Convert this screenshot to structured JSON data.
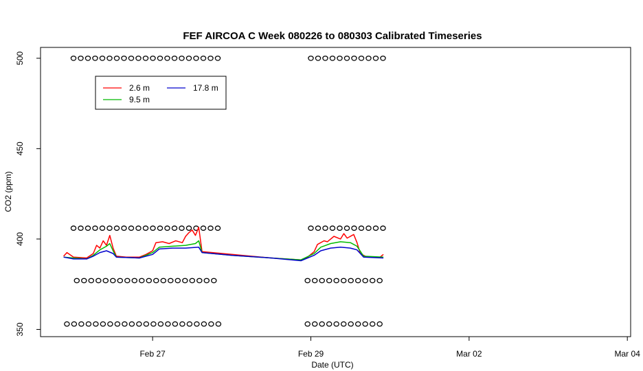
{
  "chart_data": {
    "type": "line",
    "title": "FEF AIRCOA C  Week 080226 to 080303  Calibrated Timeseries",
    "xlabel": "Date (UTC)",
    "ylabel": "CO2 (ppm)",
    "xlim": [
      "2008-02-25T14:00",
      "2008-03-04T01:00"
    ],
    "ylim": [
      346,
      506
    ],
    "x_ticks": [
      {
        "date": "2008-02-27T00:00",
        "label": "Feb 27"
      },
      {
        "date": "2008-02-29T00:00",
        "label": "Feb 29"
      },
      {
        "date": "2008-03-02T00:00",
        "label": "Mar 02"
      },
      {
        "date": "2008-03-04T00:00",
        "label": "Mar 04"
      }
    ],
    "y_ticks": [
      350,
      400,
      450,
      500
    ],
    "grid": false,
    "legend_placement": "top-left",
    "legend": [
      {
        "label": "2.6 m",
        "color": "#ff0000"
      },
      {
        "label": "9.5 m",
        "color": "#00bb00"
      },
      {
        "label": "17.8 m",
        "color": "#0000cc"
      }
    ],
    "series": [
      {
        "name": "2.6 m",
        "color": "#ff0000",
        "points": [
          [
            "2008-02-25T21:00",
            390.5
          ],
          [
            "2008-02-25T22:00",
            392.5
          ],
          [
            "2008-02-26T00:00",
            390.0
          ],
          [
            "2008-02-26T04:00",
            389.5
          ],
          [
            "2008-02-26T06:00",
            392.0
          ],
          [
            "2008-02-26T07:00",
            396.5
          ],
          [
            "2008-02-26T08:00",
            395.0
          ],
          [
            "2008-02-26T09:00",
            399.0
          ],
          [
            "2008-02-26T10:00",
            396.5
          ],
          [
            "2008-02-26T11:00",
            402.0
          ],
          [
            "2008-02-26T12:00",
            395.0
          ],
          [
            "2008-02-26T13:00",
            390.5
          ],
          [
            "2008-02-26T16:00",
            390.0
          ],
          [
            "2008-02-26T20:00",
            390.0
          ],
          [
            "2008-02-26T22:00",
            391.5
          ],
          [
            "2008-02-27T00:00",
            393.5
          ],
          [
            "2008-02-27T01:00",
            398.0
          ],
          [
            "2008-02-27T03:00",
            398.5
          ],
          [
            "2008-02-27T05:00",
            397.5
          ],
          [
            "2008-02-27T07:00",
            399.0
          ],
          [
            "2008-02-27T09:00",
            398.0
          ],
          [
            "2008-02-27T10:00",
            401.5
          ],
          [
            "2008-02-27T11:00",
            403.5
          ],
          [
            "2008-02-27T12:00",
            405.0
          ],
          [
            "2008-02-27T13:00",
            402.0
          ],
          [
            "2008-02-27T14:00",
            406.5
          ],
          [
            "2008-02-27T15:00",
            393.0
          ],
          [
            "2008-02-28T00:00",
            391.5
          ],
          [
            "2008-02-28T12:00",
            389.5
          ],
          [
            "2008-02-28T21:00",
            388.5
          ],
          [
            "2008-02-28T23:00",
            390.0
          ],
          [
            "2008-02-29T01:00",
            393.0
          ],
          [
            "2008-02-29T02:00",
            397.0
          ],
          [
            "2008-02-29T04:00",
            399.0
          ],
          [
            "2008-02-29T05:00",
            398.5
          ],
          [
            "2008-02-29T07:00",
            401.5
          ],
          [
            "2008-02-29T09:00",
            400.0
          ],
          [
            "2008-02-29T10:00",
            403.0
          ],
          [
            "2008-02-29T11:00",
            400.5
          ],
          [
            "2008-02-29T13:00",
            402.5
          ],
          [
            "2008-02-29T14:00",
            398.0
          ],
          [
            "2008-02-29T15:00",
            392.0
          ],
          [
            "2008-02-29T17:00",
            390.0
          ],
          [
            "2008-02-29T21:00",
            390.0
          ],
          [
            "2008-02-29T22:00",
            391.5
          ]
        ]
      },
      {
        "name": "9.5 m",
        "color": "#00bb00",
        "points": [
          [
            "2008-02-25T21:00",
            390.0
          ],
          [
            "2008-02-26T00:00",
            389.5
          ],
          [
            "2008-02-26T04:00",
            389.0
          ],
          [
            "2008-02-26T06:00",
            391.0
          ],
          [
            "2008-02-26T08:00",
            394.0
          ],
          [
            "2008-02-26T10:00",
            396.0
          ],
          [
            "2008-02-26T11:00",
            397.5
          ],
          [
            "2008-02-26T12:00",
            393.5
          ],
          [
            "2008-02-26T13:00",
            390.0
          ],
          [
            "2008-02-26T20:00",
            389.5
          ],
          [
            "2008-02-27T00:00",
            392.5
          ],
          [
            "2008-02-27T02:00",
            395.5
          ],
          [
            "2008-02-27T06:00",
            396.0
          ],
          [
            "2008-02-27T10:00",
            396.5
          ],
          [
            "2008-02-27T13:00",
            397.5
          ],
          [
            "2008-02-27T14:00",
            399.0
          ],
          [
            "2008-02-27T15:00",
            392.5
          ],
          [
            "2008-02-28T00:00",
            391.0
          ],
          [
            "2008-02-28T12:00",
            389.5
          ],
          [
            "2008-02-28T21:00",
            388.5
          ],
          [
            "2008-02-29T01:00",
            392.0
          ],
          [
            "2008-02-29T03:00",
            395.5
          ],
          [
            "2008-02-29T06:00",
            397.5
          ],
          [
            "2008-02-29T09:00",
            398.5
          ],
          [
            "2008-02-29T12:00",
            398.0
          ],
          [
            "2008-02-29T14:00",
            396.0
          ],
          [
            "2008-02-29T16:00",
            390.5
          ],
          [
            "2008-02-29T22:00",
            390.0
          ]
        ]
      },
      {
        "name": "17.8 m",
        "color": "#0000cc",
        "points": [
          [
            "2008-02-25T21:00",
            390.0
          ],
          [
            "2008-02-26T00:00",
            389.0
          ],
          [
            "2008-02-26T04:00",
            389.0
          ],
          [
            "2008-02-26T06:00",
            390.5
          ],
          [
            "2008-02-26T08:00",
            392.5
          ],
          [
            "2008-02-26T10:00",
            393.5
          ],
          [
            "2008-02-26T12:00",
            392.0
          ],
          [
            "2008-02-26T13:00",
            390.0
          ],
          [
            "2008-02-26T20:00",
            389.5
          ],
          [
            "2008-02-27T00:00",
            391.5
          ],
          [
            "2008-02-27T02:00",
            394.5
          ],
          [
            "2008-02-27T06:00",
            395.0
          ],
          [
            "2008-02-27T10:00",
            395.0
          ],
          [
            "2008-02-27T14:00",
            395.5
          ],
          [
            "2008-02-27T15:00",
            392.5
          ],
          [
            "2008-02-28T00:00",
            391.0
          ],
          [
            "2008-02-28T12:00",
            389.5
          ],
          [
            "2008-02-28T21:00",
            388.0
          ],
          [
            "2008-02-29T01:00",
            391.0
          ],
          [
            "2008-02-29T03:00",
            393.5
          ],
          [
            "2008-02-29T06:00",
            395.0
          ],
          [
            "2008-02-29T09:00",
            395.5
          ],
          [
            "2008-02-29T12:00",
            395.0
          ],
          [
            "2008-02-29T14:00",
            394.0
          ],
          [
            "2008-02-29T16:00",
            390.0
          ],
          [
            "2008-02-29T22:00",
            389.5
          ]
        ]
      }
    ],
    "flag_markers": [
      {
        "y": 500,
        "runs": [
          [
            "2008-02-26T00:00",
            "2008-02-27T20:00"
          ],
          [
            "2008-02-29T00:00",
            "2008-02-29T22:00"
          ]
        ]
      },
      {
        "y": 406,
        "runs": [
          [
            "2008-02-26T00:00",
            "2008-02-27T20:00"
          ],
          [
            "2008-02-29T00:00",
            "2008-02-29T22:00"
          ]
        ]
      },
      {
        "y": 377,
        "runs": [
          [
            "2008-02-26T01:00",
            "2008-02-27T20:00"
          ],
          [
            "2008-02-28T23:00",
            "2008-02-29T22:00"
          ]
        ]
      },
      {
        "y": 353,
        "runs": [
          [
            "2008-02-25T22:00",
            "2008-02-27T20:00"
          ],
          [
            "2008-02-28T23:00",
            "2008-02-29T22:00"
          ]
        ]
      }
    ]
  }
}
